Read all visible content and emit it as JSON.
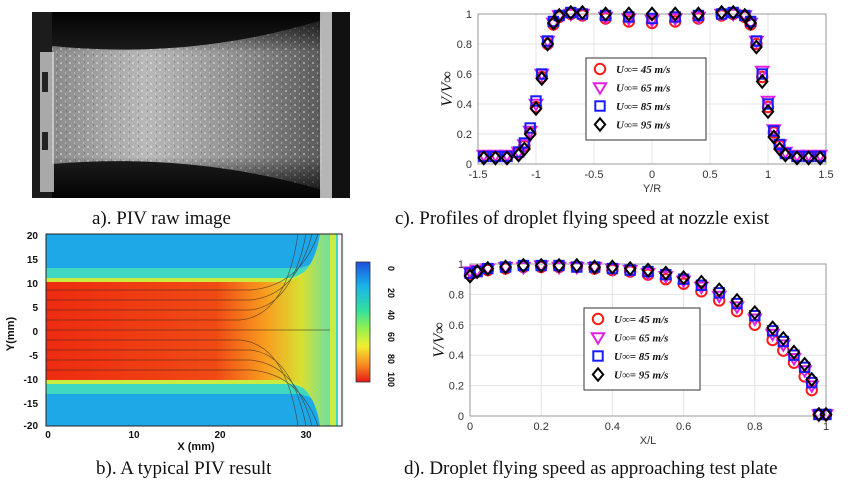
{
  "captions": {
    "a": "a). PIV raw image",
    "b": "b). A typical PIV result",
    "c": "c). Profiles of droplet flying speed at nozzle exist",
    "d": "d). Droplet flying speed as approaching test plate"
  },
  "panel_b": {
    "xlabel": "X (mm)",
    "ylabel": "Y(mm)",
    "xticks": [
      "0",
      "10",
      "20",
      "30"
    ],
    "yticks": [
      "20",
      "15",
      "10",
      "5",
      "0",
      "-5",
      "-10",
      "-15",
      "-20"
    ],
    "colorbar_ticks": [
      "0",
      "20",
      "40",
      "60",
      "80",
      "100"
    ]
  },
  "legend": [
    {
      "label": "U∞= 45 m/s",
      "marker": "circle",
      "color": "#ff1a1a"
    },
    {
      "label": "U∞= 65 m/s",
      "marker": "triangle-down",
      "color": "#e020e0"
    },
    {
      "label": "U∞= 85 m/s",
      "marker": "square",
      "color": "#1a1aff"
    },
    {
      "label": "U∞= 95 m/s",
      "marker": "diamond",
      "color": "#000000"
    }
  ],
  "chart_data": [
    {
      "type": "scatter",
      "id": "c",
      "xlabel": "Y/R",
      "ylabel": "V/V∞",
      "xlim": [
        -1.5,
        1.5
      ],
      "ylim": [
        0,
        1
      ],
      "xticks": [
        "-1.5",
        "-1",
        "-0.5",
        "0",
        "0.5",
        "1",
        "1.5"
      ],
      "yticks": [
        "0",
        "0.2",
        "0.4",
        "0.6",
        "0.8",
        "1"
      ],
      "grid": true,
      "legend_position": "center-right",
      "series": [
        {
          "name": "U∞= 45 m/s",
          "points": [
            [
              -1.45,
              0.05
            ],
            [
              -1.35,
              0.05
            ],
            [
              -1.25,
              0.05
            ],
            [
              -1.15,
              0.07
            ],
            [
              -1.1,
              0.12
            ],
            [
              -1.05,
              0.21
            ],
            [
              -1.0,
              0.38
            ],
            [
              -0.95,
              0.58
            ],
            [
              -0.9,
              0.8
            ],
            [
              -0.85,
              0.93
            ],
            [
              -0.8,
              0.98
            ],
            [
              -0.7,
              1.0
            ],
            [
              -0.6,
              0.99
            ],
            [
              -0.4,
              0.97
            ],
            [
              -0.2,
              0.95
            ],
            [
              0.0,
              0.94
            ],
            [
              0.2,
              0.95
            ],
            [
              0.4,
              0.97
            ],
            [
              0.6,
              0.99
            ],
            [
              0.7,
              1.0
            ],
            [
              0.8,
              0.98
            ],
            [
              0.85,
              0.93
            ],
            [
              0.9,
              0.8
            ],
            [
              0.95,
              0.58
            ],
            [
              1.0,
              0.38
            ],
            [
              1.05,
              0.21
            ],
            [
              1.1,
              0.12
            ],
            [
              1.15,
              0.07
            ],
            [
              1.25,
              0.05
            ],
            [
              1.35,
              0.05
            ],
            [
              1.45,
              0.05
            ]
          ]
        },
        {
          "name": "U∞= 65 m/s",
          "points": [
            [
              -1.45,
              0.06
            ],
            [
              -1.35,
              0.06
            ],
            [
              -1.25,
              0.06
            ],
            [
              -1.15,
              0.08
            ],
            [
              -1.1,
              0.13
            ],
            [
              -1.05,
              0.22
            ],
            [
              -1.0,
              0.4
            ],
            [
              -0.95,
              0.6
            ],
            [
              -0.9,
              0.82
            ],
            [
              -0.85,
              0.94
            ],
            [
              -0.8,
              0.99
            ],
            [
              -0.7,
              1.0
            ],
            [
              -0.6,
              1.0
            ],
            [
              -0.4,
              0.98
            ],
            [
              -0.2,
              0.97
            ],
            [
              0.0,
              0.96
            ],
            [
              0.2,
              0.97
            ],
            [
              0.4,
              0.98
            ],
            [
              0.6,
              1.0
            ],
            [
              0.7,
              1.0
            ],
            [
              0.8,
              0.99
            ],
            [
              0.85,
              0.94
            ],
            [
              0.9,
              0.82
            ],
            [
              0.95,
              0.62
            ],
            [
              1.0,
              0.42
            ],
            [
              1.05,
              0.23
            ],
            [
              1.1,
              0.13
            ],
            [
              1.15,
              0.08
            ],
            [
              1.25,
              0.06
            ],
            [
              1.35,
              0.06
            ],
            [
              1.45,
              0.06
            ]
          ]
        },
        {
          "name": "U∞= 85 m/s",
          "points": [
            [
              -1.45,
              0.05
            ],
            [
              -1.35,
              0.05
            ],
            [
              -1.25,
              0.05
            ],
            [
              -1.15,
              0.08
            ],
            [
              -1.1,
              0.14
            ],
            [
              -1.05,
              0.24
            ],
            [
              -1.0,
              0.42
            ],
            [
              -0.95,
              0.6
            ],
            [
              -0.9,
              0.82
            ],
            [
              -0.85,
              0.95
            ],
            [
              -0.8,
              0.99
            ],
            [
              -0.7,
              1.01
            ],
            [
              -0.6,
              1.0
            ],
            [
              -0.4,
              0.99
            ],
            [
              -0.2,
              0.98
            ],
            [
              0.0,
              0.97
            ],
            [
              0.2,
              0.98
            ],
            [
              0.4,
              0.99
            ],
            [
              0.6,
              1.0
            ],
            [
              0.7,
              1.01
            ],
            [
              0.8,
              0.99
            ],
            [
              0.85,
              0.95
            ],
            [
              0.9,
              0.82
            ],
            [
              0.95,
              0.6
            ],
            [
              1.0,
              0.4
            ],
            [
              1.05,
              0.22
            ],
            [
              1.1,
              0.13
            ],
            [
              1.15,
              0.07
            ],
            [
              1.25,
              0.05
            ],
            [
              1.35,
              0.05
            ],
            [
              1.45,
              0.05
            ]
          ]
        },
        {
          "name": "U∞= 95 m/s",
          "points": [
            [
              -1.45,
              0.04
            ],
            [
              -1.35,
              0.04
            ],
            [
              -1.25,
              0.04
            ],
            [
              -1.15,
              0.06
            ],
            [
              -1.1,
              0.1
            ],
            [
              -1.05,
              0.2
            ],
            [
              -1.0,
              0.37
            ],
            [
              -0.95,
              0.57
            ],
            [
              -0.9,
              0.8
            ],
            [
              -0.85,
              0.94
            ],
            [
              -0.8,
              0.99
            ],
            [
              -0.7,
              1.01
            ],
            [
              -0.6,
              1.01
            ],
            [
              -0.4,
              1.0
            ],
            [
              -0.2,
              1.0
            ],
            [
              0.0,
              1.0
            ],
            [
              0.2,
              1.0
            ],
            [
              0.4,
              1.0
            ],
            [
              0.6,
              1.01
            ],
            [
              0.7,
              1.01
            ],
            [
              0.8,
              0.99
            ],
            [
              0.85,
              0.94
            ],
            [
              0.9,
              0.78
            ],
            [
              0.95,
              0.55
            ],
            [
              1.0,
              0.35
            ],
            [
              1.05,
              0.18
            ],
            [
              1.1,
              0.1
            ],
            [
              1.15,
              0.06
            ],
            [
              1.25,
              0.04
            ],
            [
              1.35,
              0.04
            ],
            [
              1.45,
              0.04
            ]
          ]
        }
      ]
    },
    {
      "type": "scatter",
      "id": "d",
      "xlabel": "X/L",
      "ylabel": "V/V∞",
      "xlim": [
        0,
        1
      ],
      "ylim": [
        0,
        1
      ],
      "xticks": [
        "0",
        "0.2",
        "0.4",
        "0.6",
        "0.8",
        "1"
      ],
      "yticks": [
        "0",
        "0.2",
        "0.4",
        "0.6",
        "0.8",
        "1"
      ],
      "grid": true,
      "legend_position": "center",
      "series": [
        {
          "name": "U∞= 45 m/s",
          "points": [
            [
              0.0,
              0.93
            ],
            [
              0.02,
              0.95
            ],
            [
              0.05,
              0.96
            ],
            [
              0.1,
              0.97
            ],
            [
              0.15,
              0.98
            ],
            [
              0.2,
              0.98
            ],
            [
              0.25,
              0.98
            ],
            [
              0.3,
              0.98
            ],
            [
              0.35,
              0.97
            ],
            [
              0.4,
              0.96
            ],
            [
              0.45,
              0.95
            ],
            [
              0.5,
              0.93
            ],
            [
              0.55,
              0.9
            ],
            [
              0.6,
              0.87
            ],
            [
              0.65,
              0.82
            ],
            [
              0.7,
              0.76
            ],
            [
              0.75,
              0.69
            ],
            [
              0.8,
              0.6
            ],
            [
              0.85,
              0.5
            ],
            [
              0.88,
              0.43
            ],
            [
              0.91,
              0.35
            ],
            [
              0.94,
              0.26
            ],
            [
              0.96,
              0.17
            ],
            [
              0.98,
              0.01
            ],
            [
              1.0,
              0.01
            ]
          ]
        },
        {
          "name": "U∞= 65 m/s",
          "points": [
            [
              0.0,
              0.95
            ],
            [
              0.02,
              0.96
            ],
            [
              0.05,
              0.97
            ],
            [
              0.1,
              0.98
            ],
            [
              0.15,
              0.98
            ],
            [
              0.2,
              0.99
            ],
            [
              0.25,
              0.98
            ],
            [
              0.3,
              0.98
            ],
            [
              0.35,
              0.98
            ],
            [
              0.4,
              0.97
            ],
            [
              0.45,
              0.96
            ],
            [
              0.5,
              0.94
            ],
            [
              0.55,
              0.92
            ],
            [
              0.6,
              0.89
            ],
            [
              0.65,
              0.85
            ],
            [
              0.7,
              0.79
            ],
            [
              0.75,
              0.72
            ],
            [
              0.8,
              0.64
            ],
            [
              0.85,
              0.54
            ],
            [
              0.88,
              0.47
            ],
            [
              0.91,
              0.38
            ],
            [
              0.94,
              0.3
            ],
            [
              0.96,
              0.2
            ],
            [
              0.98,
              0.01
            ],
            [
              1.0,
              0.01
            ]
          ]
        },
        {
          "name": "U∞= 85 m/s",
          "points": [
            [
              0.0,
              0.94
            ],
            [
              0.02,
              0.95
            ],
            [
              0.05,
              0.97
            ],
            [
              0.1,
              0.98
            ],
            [
              0.15,
              0.99
            ],
            [
              0.2,
              0.99
            ],
            [
              0.25,
              0.99
            ],
            [
              0.3,
              0.98
            ],
            [
              0.35,
              0.98
            ],
            [
              0.4,
              0.97
            ],
            [
              0.45,
              0.96
            ],
            [
              0.5,
              0.95
            ],
            [
              0.55,
              0.93
            ],
            [
              0.6,
              0.9
            ],
            [
              0.65,
              0.86
            ],
            [
              0.7,
              0.81
            ],
            [
              0.75,
              0.74
            ],
            [
              0.8,
              0.66
            ],
            [
              0.85,
              0.56
            ],
            [
              0.88,
              0.49
            ],
            [
              0.91,
              0.4
            ],
            [
              0.94,
              0.32
            ],
            [
              0.96,
              0.22
            ],
            [
              0.98,
              0.01
            ],
            [
              1.0,
              0.01
            ]
          ]
        },
        {
          "name": "U∞= 95 m/s",
          "points": [
            [
              0.0,
              0.92
            ],
            [
              0.02,
              0.95
            ],
            [
              0.05,
              0.97
            ],
            [
              0.1,
              0.98
            ],
            [
              0.15,
              0.99
            ],
            [
              0.2,
              0.99
            ],
            [
              0.25,
              0.99
            ],
            [
              0.3,
              0.99
            ],
            [
              0.35,
              0.98
            ],
            [
              0.4,
              0.98
            ],
            [
              0.45,
              0.97
            ],
            [
              0.5,
              0.96
            ],
            [
              0.55,
              0.94
            ],
            [
              0.6,
              0.91
            ],
            [
              0.65,
              0.88
            ],
            [
              0.7,
              0.83
            ],
            [
              0.75,
              0.76
            ],
            [
              0.8,
              0.68
            ],
            [
              0.85,
              0.58
            ],
            [
              0.88,
              0.51
            ],
            [
              0.91,
              0.42
            ],
            [
              0.94,
              0.34
            ],
            [
              0.96,
              0.24
            ],
            [
              0.98,
              0.01
            ],
            [
              1.0,
              0.01
            ]
          ]
        }
      ]
    }
  ]
}
